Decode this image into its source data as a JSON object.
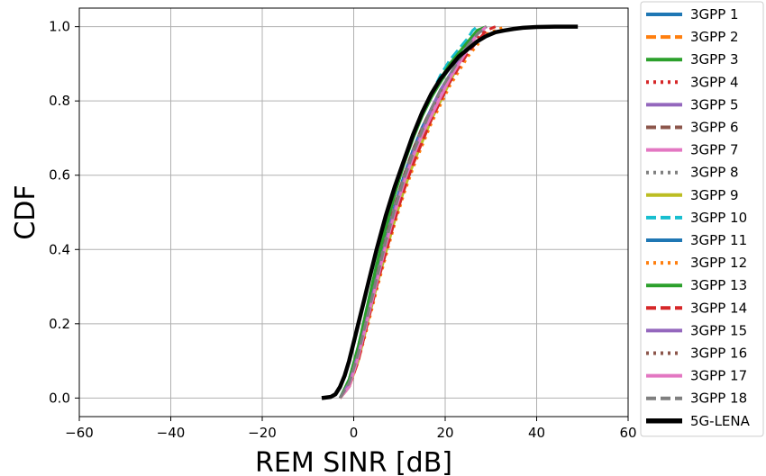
{
  "chart_data": {
    "type": "line",
    "title": "",
    "xlabel": "REM SINR [dB]",
    "ylabel": "CDF",
    "xlim": [
      -60,
      60
    ],
    "ylim": [
      -0.05,
      1.05
    ],
    "xticks": [
      -60,
      -40,
      -20,
      0,
      20,
      40,
      60
    ],
    "xtick_labels": [
      "−60",
      "−40",
      "−20",
      "0",
      "20",
      "40",
      "60"
    ],
    "yticks": [
      0.0,
      0.2,
      0.4,
      0.6,
      0.8,
      1.0
    ],
    "ytick_labels": [
      "0.0",
      "0.2",
      "0.4",
      "0.6",
      "0.8",
      "1.0"
    ],
    "grid": true,
    "legend_position": "outside-right",
    "series": [
      {
        "name": "3GPP 1",
        "color": "#1f77b4",
        "dash": "solid",
        "x": [
          -3,
          -1,
          1,
          3,
          5,
          7,
          9,
          11,
          13,
          15,
          17,
          19,
          21,
          23,
          25,
          27,
          29
        ],
        "y": [
          0,
          0.04,
          0.12,
          0.22,
          0.32,
          0.42,
          0.52,
          0.6,
          0.67,
          0.73,
          0.78,
          0.83,
          0.87,
          0.91,
          0.95,
          0.98,
          1.0
        ]
      },
      {
        "name": "3GPP 2",
        "color": "#ff7f0e",
        "dash": "dashed",
        "x": [
          -3,
          -1,
          1,
          3,
          5,
          7,
          9,
          11,
          13,
          15,
          17,
          19,
          21,
          23,
          25,
          27,
          29
        ],
        "y": [
          0,
          0.03,
          0.1,
          0.2,
          0.3,
          0.4,
          0.49,
          0.57,
          0.64,
          0.7,
          0.75,
          0.8,
          0.85,
          0.9,
          0.94,
          0.98,
          1.0
        ]
      },
      {
        "name": "3GPP 3",
        "color": "#2ca02c",
        "dash": "solid",
        "x": [
          -3,
          -1,
          1,
          3,
          5,
          7,
          9,
          11,
          13,
          15,
          17,
          19,
          21,
          23,
          25,
          27,
          29
        ],
        "y": [
          0,
          0.05,
          0.14,
          0.24,
          0.35,
          0.45,
          0.55,
          0.63,
          0.7,
          0.76,
          0.81,
          0.85,
          0.89,
          0.93,
          0.96,
          0.99,
          1.0
        ]
      },
      {
        "name": "3GPP 4",
        "color": "#d62728",
        "dash": "dotted",
        "x": [
          -3,
          -1,
          1,
          3,
          5,
          7,
          9,
          11,
          13,
          15,
          17,
          19,
          21,
          23,
          25,
          27,
          29
        ],
        "y": [
          0,
          0.03,
          0.11,
          0.21,
          0.31,
          0.41,
          0.5,
          0.58,
          0.65,
          0.71,
          0.76,
          0.81,
          0.86,
          0.9,
          0.94,
          0.97,
          1.0
        ]
      },
      {
        "name": "3GPP 5",
        "color": "#9467bd",
        "dash": "solid",
        "x": [
          -3,
          -1,
          1,
          3,
          5,
          7,
          9,
          11,
          13,
          15,
          17,
          19,
          21,
          23,
          25,
          27,
          29
        ],
        "y": [
          0,
          0.04,
          0.12,
          0.22,
          0.32,
          0.42,
          0.51,
          0.59,
          0.66,
          0.72,
          0.77,
          0.82,
          0.86,
          0.9,
          0.94,
          0.98,
          1.0
        ]
      },
      {
        "name": "3GPP 6",
        "color": "#8c564b",
        "dash": "dashed",
        "x": [
          -3,
          -1,
          1,
          3,
          5,
          7,
          9,
          11,
          13,
          15,
          17,
          19,
          21,
          23,
          25,
          27,
          29
        ],
        "y": [
          0,
          0.04,
          0.12,
          0.22,
          0.33,
          0.43,
          0.52,
          0.6,
          0.67,
          0.73,
          0.78,
          0.83,
          0.87,
          0.91,
          0.95,
          0.98,
          1.0
        ]
      },
      {
        "name": "3GPP 7",
        "color": "#e377c2",
        "dash": "solid",
        "x": [
          -3,
          -1,
          1,
          3,
          5,
          7,
          9,
          11,
          13,
          15,
          17,
          19,
          21,
          23,
          25,
          27,
          29
        ],
        "y": [
          0,
          0.03,
          0.11,
          0.21,
          0.31,
          0.41,
          0.5,
          0.58,
          0.65,
          0.71,
          0.77,
          0.82,
          0.86,
          0.9,
          0.94,
          0.98,
          1.0
        ]
      },
      {
        "name": "3GPP 8",
        "color": "#7f7f7f",
        "dash": "dotted",
        "x": [
          -3,
          -1,
          1,
          3,
          5,
          7,
          9,
          11,
          13,
          15,
          17,
          19,
          21,
          23,
          25,
          27,
          29
        ],
        "y": [
          0,
          0.04,
          0.13,
          0.23,
          0.33,
          0.43,
          0.52,
          0.6,
          0.67,
          0.73,
          0.78,
          0.83,
          0.87,
          0.91,
          0.95,
          0.98,
          1.0
        ]
      },
      {
        "name": "3GPP 9",
        "color": "#bcbd22",
        "dash": "solid",
        "x": [
          -3,
          -1,
          1,
          3,
          5,
          7,
          9,
          11,
          13,
          15,
          17,
          19,
          21,
          23,
          25,
          27,
          29
        ],
        "y": [
          0,
          0.03,
          0.1,
          0.2,
          0.3,
          0.39,
          0.48,
          0.56,
          0.63,
          0.69,
          0.75,
          0.8,
          0.85,
          0.9,
          0.94,
          0.98,
          1.0
        ]
      },
      {
        "name": "3GPP 10",
        "color": "#17becf",
        "dash": "dashed",
        "x": [
          -3,
          -1,
          1,
          3,
          5,
          7,
          9,
          11,
          13,
          15,
          17,
          19,
          21,
          23,
          25,
          26,
          27
        ],
        "y": [
          0,
          0.05,
          0.14,
          0.25,
          0.36,
          0.46,
          0.56,
          0.64,
          0.71,
          0.77,
          0.82,
          0.87,
          0.91,
          0.94,
          0.97,
          0.99,
          1.0
        ]
      },
      {
        "name": "3GPP 11",
        "color": "#1f77b4",
        "dash": "solid",
        "x": [
          -3,
          -1,
          1,
          3,
          5,
          7,
          9,
          11,
          13,
          15,
          17,
          19,
          21,
          23,
          25,
          27,
          29
        ],
        "y": [
          0,
          0.04,
          0.12,
          0.22,
          0.32,
          0.42,
          0.51,
          0.59,
          0.66,
          0.72,
          0.78,
          0.83,
          0.87,
          0.91,
          0.95,
          0.98,
          1.0
        ]
      },
      {
        "name": "3GPP 12",
        "color": "#ff7f0e",
        "dash": "dotted",
        "x": [
          -3,
          -1,
          1,
          3,
          5,
          7,
          9,
          11,
          13,
          15,
          17,
          19,
          21,
          23,
          25,
          27,
          29,
          31,
          33
        ],
        "y": [
          0,
          0.03,
          0.1,
          0.19,
          0.29,
          0.38,
          0.47,
          0.55,
          0.62,
          0.68,
          0.74,
          0.79,
          0.84,
          0.88,
          0.92,
          0.95,
          0.98,
          0.99,
          1.0
        ]
      },
      {
        "name": "3GPP 13",
        "color": "#2ca02c",
        "dash": "solid",
        "x": [
          -3,
          -1,
          1,
          3,
          5,
          7,
          9,
          11,
          13,
          15,
          17,
          19,
          21,
          23,
          25,
          27,
          29
        ],
        "y": [
          0,
          0.05,
          0.14,
          0.25,
          0.36,
          0.46,
          0.55,
          0.63,
          0.7,
          0.76,
          0.81,
          0.86,
          0.9,
          0.93,
          0.96,
          0.99,
          1.0
        ]
      },
      {
        "name": "3GPP 14",
        "color": "#d62728",
        "dash": "dashed",
        "x": [
          -3,
          -1,
          1,
          3,
          5,
          7,
          9,
          11,
          13,
          15,
          17,
          19,
          21,
          23,
          25,
          27,
          29,
          31
        ],
        "y": [
          0,
          0.03,
          0.1,
          0.2,
          0.3,
          0.39,
          0.48,
          0.56,
          0.63,
          0.69,
          0.75,
          0.8,
          0.85,
          0.89,
          0.93,
          0.96,
          0.99,
          1.0
        ]
      },
      {
        "name": "3GPP 15",
        "color": "#9467bd",
        "dash": "solid",
        "x": [
          -3,
          -1,
          1,
          3,
          5,
          7,
          9,
          11,
          13,
          15,
          17,
          19,
          21,
          23,
          25,
          27,
          29
        ],
        "y": [
          0,
          0.04,
          0.12,
          0.22,
          0.32,
          0.42,
          0.51,
          0.59,
          0.66,
          0.72,
          0.78,
          0.83,
          0.87,
          0.91,
          0.95,
          0.98,
          1.0
        ]
      },
      {
        "name": "3GPP 16",
        "color": "#8c564b",
        "dash": "dotted",
        "x": [
          -3,
          -1,
          1,
          3,
          5,
          7,
          9,
          11,
          13,
          15,
          17,
          19,
          21,
          23,
          25,
          27,
          29
        ],
        "y": [
          0,
          0.04,
          0.12,
          0.22,
          0.32,
          0.42,
          0.51,
          0.59,
          0.66,
          0.72,
          0.77,
          0.82,
          0.86,
          0.9,
          0.94,
          0.98,
          1.0
        ]
      },
      {
        "name": "3GPP 17",
        "color": "#e377c2",
        "dash": "solid",
        "x": [
          -3,
          -1,
          1,
          3,
          5,
          7,
          9,
          11,
          13,
          15,
          17,
          19,
          21,
          23,
          25,
          27,
          29
        ],
        "y": [
          0,
          0.03,
          0.11,
          0.21,
          0.31,
          0.41,
          0.5,
          0.58,
          0.65,
          0.71,
          0.76,
          0.81,
          0.86,
          0.9,
          0.94,
          0.98,
          1.0
        ]
      },
      {
        "name": "3GPP 18",
        "color": "#7f7f7f",
        "dash": "dashed",
        "x": [
          -3,
          -1,
          1,
          3,
          5,
          7,
          9,
          11,
          13,
          15,
          17,
          19,
          21,
          23,
          25,
          27,
          29
        ],
        "y": [
          0,
          0.04,
          0.12,
          0.22,
          0.32,
          0.42,
          0.51,
          0.59,
          0.66,
          0.72,
          0.78,
          0.83,
          0.87,
          0.91,
          0.95,
          0.98,
          1.0
        ]
      },
      {
        "name": "5G-LENA",
        "color": "#000000",
        "dash": "solid",
        "width": "thick",
        "x": [
          -7,
          -5,
          -4,
          -3,
          -2,
          -1,
          0,
          1,
          2,
          3,
          5,
          7,
          9,
          11,
          13,
          15,
          17,
          19,
          21,
          23,
          25,
          27,
          29,
          31,
          33,
          35,
          37,
          40,
          44,
          49
        ],
        "y": [
          0,
          0.003,
          0.01,
          0.03,
          0.06,
          0.1,
          0.15,
          0.2,
          0.25,
          0.3,
          0.4,
          0.49,
          0.57,
          0.64,
          0.71,
          0.77,
          0.82,
          0.86,
          0.89,
          0.92,
          0.94,
          0.96,
          0.975,
          0.985,
          0.99,
          0.994,
          0.997,
          0.999,
          1.0,
          1.0
        ]
      }
    ]
  }
}
